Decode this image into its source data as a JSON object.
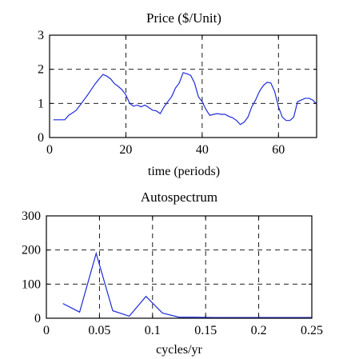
{
  "chart_data": [
    {
      "type": "line",
      "title": "Price ($/Unit)",
      "xlabel": "time (periods)",
      "ylabel": "",
      "xlim": [
        0,
        70
      ],
      "ylim": [
        0,
        3
      ],
      "xticks": [
        0,
        20,
        40,
        60
      ],
      "yticks": [
        0,
        1,
        2,
        3
      ],
      "xtick_labels": [
        "0",
        "20",
        "40",
        "60"
      ],
      "ytick_labels": [
        "0",
        "1",
        "2",
        "3"
      ],
      "grid": true,
      "color": "#1f2bdb",
      "series": [
        {
          "x": [
            1,
            2,
            3,
            4,
            5,
            6,
            7,
            8,
            9,
            10,
            11,
            12,
            13,
            14,
            15,
            16,
            17,
            18,
            19,
            20,
            21,
            22,
            23,
            24,
            25,
            26,
            27,
            28,
            29,
            30,
            31,
            32,
            33,
            34,
            35,
            36,
            37,
            38,
            39,
            40,
            41,
            42,
            43,
            44,
            45,
            46,
            47,
            48,
            49,
            50,
            51,
            52,
            53,
            54,
            55,
            56,
            57,
            58,
            59,
            60,
            61,
            62,
            63,
            64,
            65,
            66,
            67,
            68,
            69,
            70
          ],
          "y": [
            0.52,
            0.52,
            0.52,
            0.52,
            0.65,
            0.72,
            0.8,
            0.95,
            1.1,
            1.25,
            1.42,
            1.58,
            1.72,
            1.85,
            1.8,
            1.72,
            1.58,
            1.5,
            1.4,
            1.25,
            1.0,
            0.92,
            0.95,
            0.9,
            0.95,
            0.88,
            0.8,
            0.78,
            0.7,
            0.9,
            1.05,
            1.2,
            1.45,
            1.6,
            1.9,
            1.87,
            1.82,
            1.6,
            1.2,
            1.05,
            0.82,
            0.65,
            0.68,
            0.7,
            0.68,
            0.68,
            0.62,
            0.58,
            0.5,
            0.38,
            0.45,
            0.6,
            0.9,
            1.1,
            1.35,
            1.52,
            1.62,
            1.6,
            1.35,
            0.9,
            0.6,
            0.5,
            0.5,
            0.6,
            1.05,
            1.1,
            1.15,
            1.15,
            1.1,
            0.98
          ]
        }
      ]
    },
    {
      "type": "line",
      "title": "Autospectrum",
      "xlabel": "cycles/yr",
      "ylabel": "",
      "xlim": [
        0,
        0.25
      ],
      "ylim": [
        0,
        300
      ],
      "xticks": [
        0,
        0.05,
        0.1,
        0.15,
        0.2,
        0.25
      ],
      "yticks": [
        0,
        100,
        200,
        300
      ],
      "xtick_labels": [
        "0",
        "0.05",
        "0.1",
        "0.15",
        "0.2",
        "0.25"
      ],
      "ytick_labels": [
        "0",
        "100",
        "200",
        "300"
      ],
      "grid": true,
      "color": "#1f2bdb",
      "series": [
        {
          "x": [
            0.0156,
            0.0313,
            0.0469,
            0.0625,
            0.0781,
            0.0938,
            0.1094,
            0.125,
            0.1406,
            0.1563,
            0.1719,
            0.1875,
            0.2031,
            0.2188,
            0.2344,
            0.25
          ],
          "y": [
            43,
            18,
            190,
            22,
            6,
            64,
            15,
            3,
            3,
            2,
            2,
            2,
            2,
            2,
            2,
            2
          ]
        }
      ]
    }
  ]
}
